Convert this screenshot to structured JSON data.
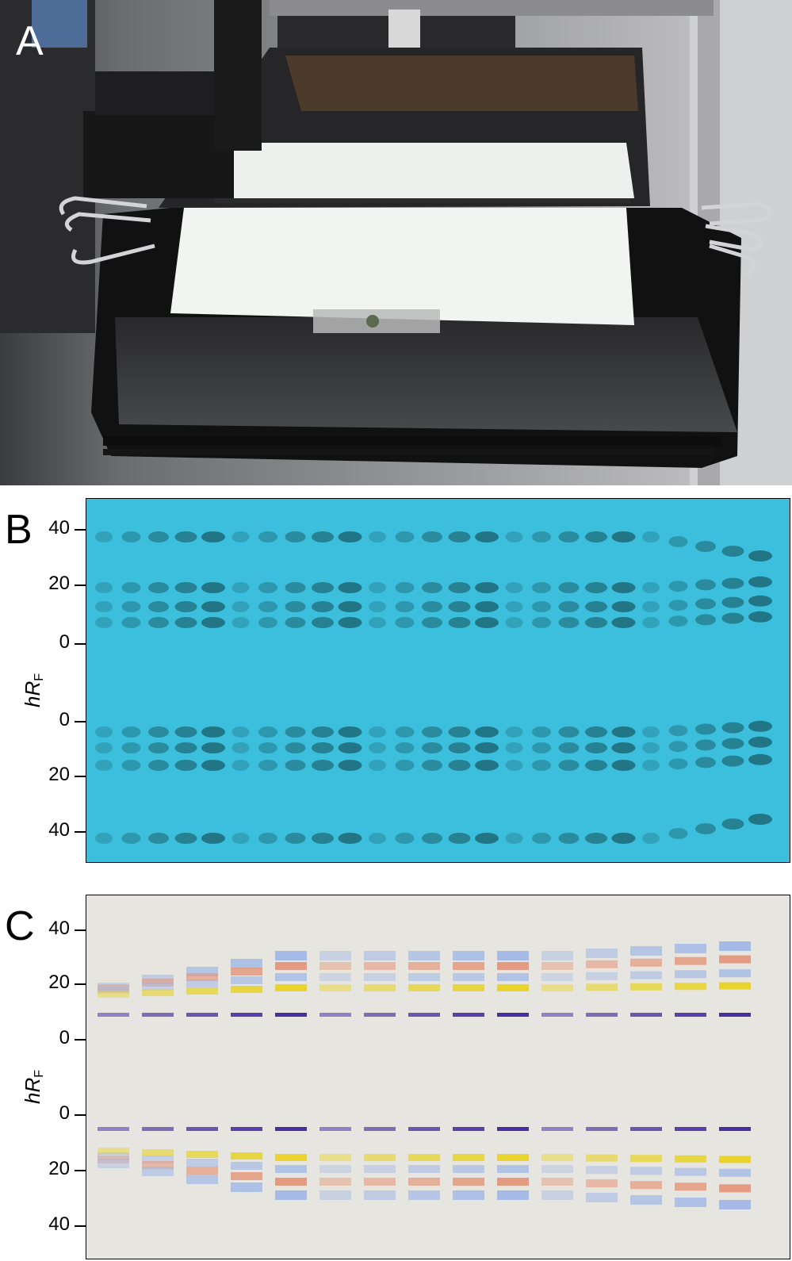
{
  "figure": {
    "panels": [
      {
        "id": "A",
        "letter": "A"
      },
      {
        "id": "B",
        "letter": "B"
      },
      {
        "id": "C",
        "letter": "C"
      }
    ],
    "axis_label": {
      "italic": "hR",
      "subscript": "F"
    },
    "tick_labels_top": [
      "40",
      "20",
      "0"
    ],
    "tick_labels_bottom": [
      "0",
      "20",
      "40"
    ]
  },
  "colors": {
    "plate_b_background": "#3cbfdc",
    "plate_b_band": "#1f6e7c",
    "plate_c_background": "#e7e5df",
    "band_violet": "#4a2fa0",
    "band_yellow": "#e8d21e",
    "band_orange": "#e4967a",
    "band_blue": "#9fb7e6"
  }
}
